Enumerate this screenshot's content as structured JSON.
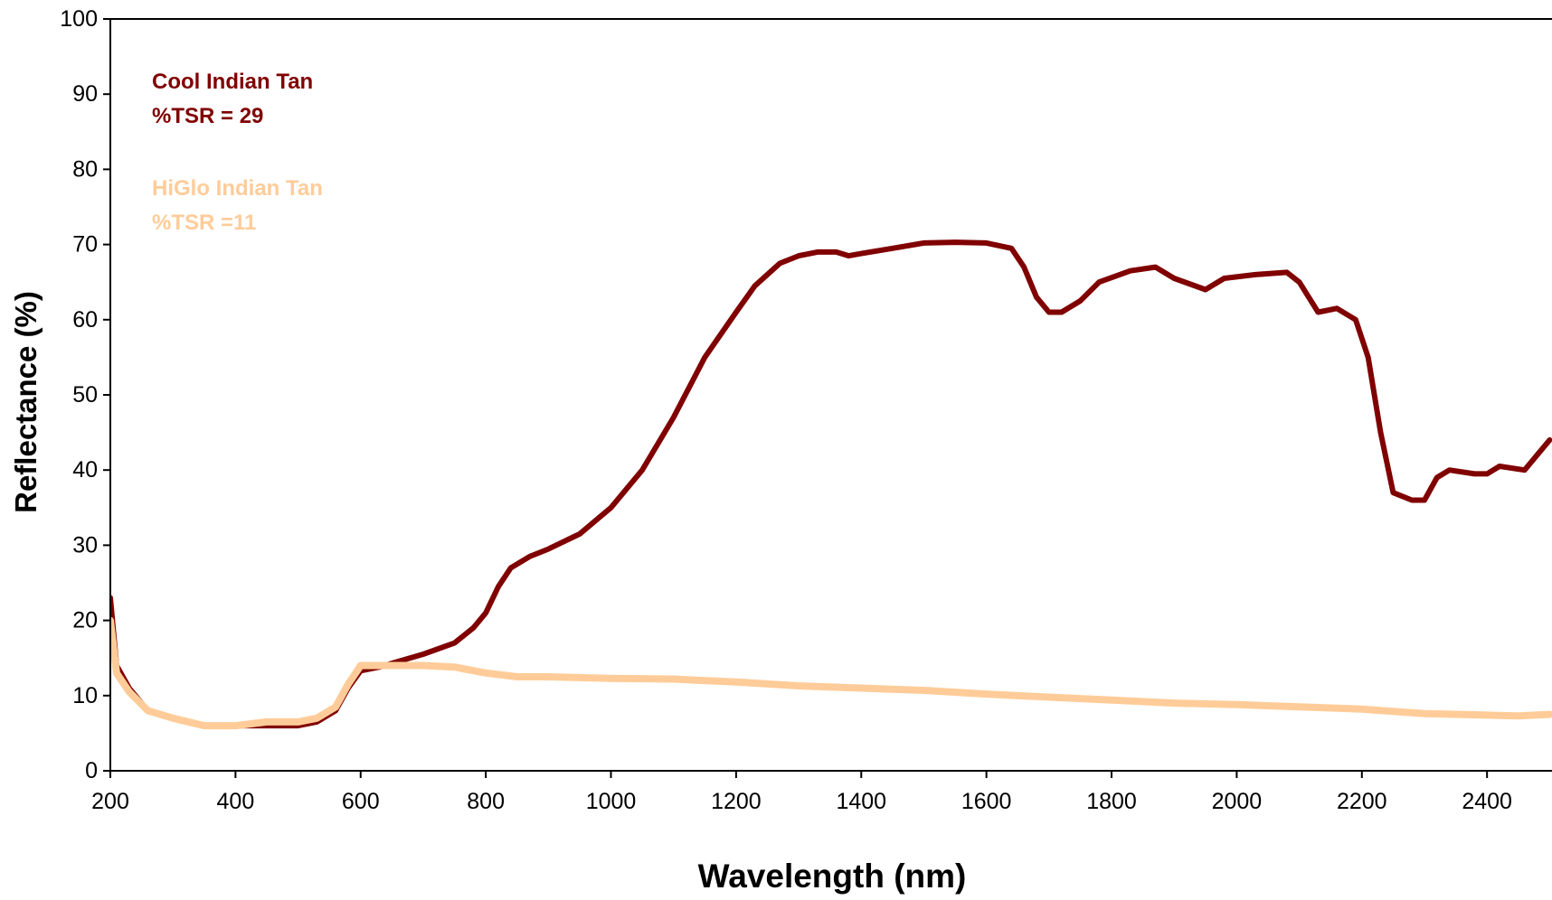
{
  "chart_data": {
    "type": "line",
    "title": "",
    "xlabel": "Wavelength (nm)",
    "ylabel": "Reflectance (%)",
    "xlim": [
      200,
      2500
    ],
    "ylim": [
      0,
      100
    ],
    "xticks": [
      "200",
      "400",
      "600",
      "800",
      "1000",
      "1200",
      "1400",
      "1600",
      "1800",
      "2000",
      "2200",
      "2400"
    ],
    "yticks": [
      "0",
      "10",
      "20",
      "30",
      "40",
      "50",
      "60",
      "70",
      "80",
      "90",
      "100"
    ],
    "grid": false,
    "legend_placement": "top-left",
    "annotations": [
      {
        "lines": [
          "Cool Indian Tan",
          "%TSR = 29"
        ],
        "color": "#800000"
      },
      {
        "lines": [
          "HiGlo Indian Tan",
          "%TSR =11"
        ],
        "color": "#FFCC99"
      }
    ],
    "series": [
      {
        "name": "Cool Indian Tan",
        "color": "#800000",
        "points": [
          [
            200,
            23
          ],
          [
            210,
            14
          ],
          [
            230,
            11
          ],
          [
            260,
            8
          ],
          [
            300,
            7
          ],
          [
            350,
            6
          ],
          [
            400,
            6
          ],
          [
            450,
            6
          ],
          [
            500,
            6
          ],
          [
            530,
            6.5
          ],
          [
            560,
            8
          ],
          [
            580,
            11
          ],
          [
            600,
            13.3
          ],
          [
            630,
            13.8
          ],
          [
            650,
            14.3
          ],
          [
            700,
            15.5
          ],
          [
            750,
            17
          ],
          [
            780,
            19
          ],
          [
            800,
            21
          ],
          [
            820,
            24.5
          ],
          [
            840,
            27
          ],
          [
            870,
            28.5
          ],
          [
            900,
            29.5
          ],
          [
            950,
            31.5
          ],
          [
            1000,
            35
          ],
          [
            1050,
            40
          ],
          [
            1100,
            47
          ],
          [
            1150,
            55
          ],
          [
            1200,
            61
          ],
          [
            1230,
            64.5
          ],
          [
            1270,
            67.5
          ],
          [
            1300,
            68.5
          ],
          [
            1330,
            69
          ],
          [
            1360,
            69
          ],
          [
            1380,
            68.5
          ],
          [
            1400,
            68.8
          ],
          [
            1450,
            69.5
          ],
          [
            1500,
            70.2
          ],
          [
            1550,
            70.3
          ],
          [
            1600,
            70.2
          ],
          [
            1640,
            69.5
          ],
          [
            1660,
            67
          ],
          [
            1680,
            63
          ],
          [
            1700,
            61
          ],
          [
            1720,
            61
          ],
          [
            1750,
            62.5
          ],
          [
            1780,
            65
          ],
          [
            1830,
            66.5
          ],
          [
            1870,
            67
          ],
          [
            1900,
            65.5
          ],
          [
            1950,
            64
          ],
          [
            1980,
            65.5
          ],
          [
            2030,
            66
          ],
          [
            2080,
            66.3
          ],
          [
            2100,
            65
          ],
          [
            2130,
            61
          ],
          [
            2160,
            61.5
          ],
          [
            2190,
            60
          ],
          [
            2210,
            55
          ],
          [
            2230,
            45
          ],
          [
            2250,
            37
          ],
          [
            2280,
            36
          ],
          [
            2300,
            36
          ],
          [
            2320,
            39
          ],
          [
            2340,
            40
          ],
          [
            2380,
            39.5
          ],
          [
            2400,
            39.5
          ],
          [
            2420,
            40.5
          ],
          [
            2460,
            40
          ],
          [
            2480,
            42
          ],
          [
            2500,
            44
          ]
        ]
      },
      {
        "name": "HiGlo Indian Tan",
        "color": "#FFCC99",
        "points": [
          [
            200,
            20
          ],
          [
            210,
            13
          ],
          [
            230,
            10.5
          ],
          [
            260,
            8
          ],
          [
            300,
            7
          ],
          [
            350,
            6
          ],
          [
            400,
            6
          ],
          [
            450,
            6.5
          ],
          [
            500,
            6.5
          ],
          [
            530,
            7
          ],
          [
            560,
            8.5
          ],
          [
            580,
            11.5
          ],
          [
            600,
            14
          ],
          [
            650,
            14
          ],
          [
            700,
            14
          ],
          [
            750,
            13.8
          ],
          [
            800,
            13
          ],
          [
            850,
            12.5
          ],
          [
            900,
            12.5
          ],
          [
            1000,
            12.3
          ],
          [
            1100,
            12.2
          ],
          [
            1200,
            11.8
          ],
          [
            1300,
            11.3
          ],
          [
            1400,
            11
          ],
          [
            1500,
            10.7
          ],
          [
            1600,
            10.2
          ],
          [
            1700,
            9.8
          ],
          [
            1800,
            9.4
          ],
          [
            1900,
            9
          ],
          [
            2000,
            8.8
          ],
          [
            2100,
            8.5
          ],
          [
            2200,
            8.2
          ],
          [
            2300,
            7.6
          ],
          [
            2400,
            7.4
          ],
          [
            2450,
            7.3
          ],
          [
            2500,
            7.5
          ]
        ]
      }
    ]
  }
}
